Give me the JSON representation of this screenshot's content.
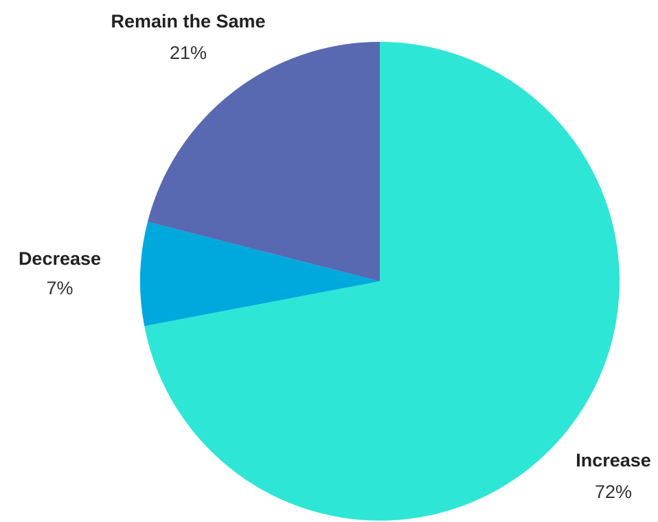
{
  "chart_data": {
    "type": "pie",
    "title": "",
    "start_angle_deg": 0,
    "direction": "clockwise",
    "legend": "none",
    "slices": [
      {
        "label": "Increase",
        "value": 72,
        "value_label": "72%",
        "color": "#2ee6d6"
      },
      {
        "label": "Decrease",
        "value": 7,
        "value_label": "7%",
        "color": "#00a9dd"
      },
      {
        "label": "Remain the Same",
        "value": 21,
        "value_label": "21%",
        "color": "#5869b1"
      }
    ]
  }
}
